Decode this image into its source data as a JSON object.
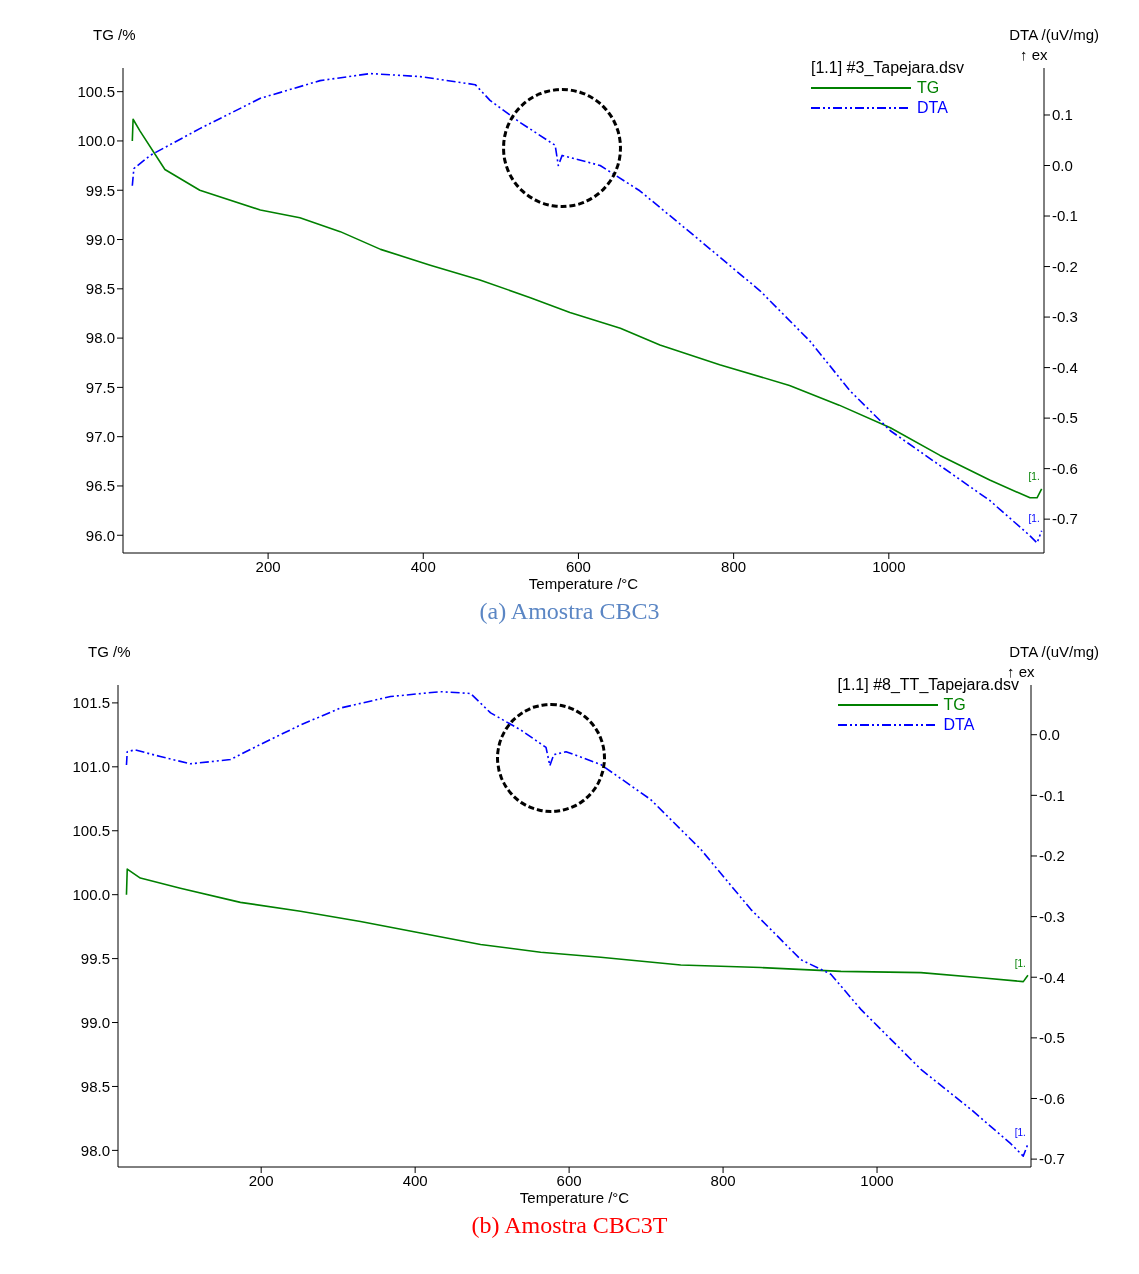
{
  "chart_data": [
    {
      "type": "line",
      "title": "(a) Amostra CBC3",
      "xlabel": "Temperature /°C",
      "ylabel": "TG /%",
      "y2label": "DTA /(uV/mg)",
      "legend_title": "[1.1] #3_Tapejara.dsv",
      "legend": "top right",
      "grid": false,
      "marker": "none",
      "xlim": [
        13,
        1200
      ],
      "xticks": [
        200,
        400,
        600,
        800,
        1000
      ],
      "ylim": [
        95.82,
        100.74
      ],
      "yticks": [
        {
          "value": 96,
          "label": "96.0"
        },
        96.5,
        {
          "value": 97,
          "label": "97.0"
        },
        97.5,
        {
          "value": 98,
          "label": "98.0"
        },
        98.5,
        {
          "value": 99,
          "label": "99.0"
        },
        99.5,
        {
          "value": 100,
          "label": "100.0"
        },
        100.5
      ],
      "y2lim": [
        -0.767,
        0.193
      ],
      "y2ticks": [
        -0.7,
        -0.6,
        -0.5,
        -0.4,
        -0.3,
        -0.2,
        -0.1,
        {
          "value": 0,
          "label": "0.0"
        },
        0.1
      ],
      "annotations": [
        "↑ ex",
        "[1.",
        "[1."
      ],
      "series": [
        {
          "name": "TG",
          "color": "#008000",
          "line_style": "solid",
          "x": [
            25,
            26,
            35,
            67,
            112,
            190,
            241,
            293,
            345,
            409,
            473,
            538,
            589,
            654,
            705,
            782,
            872,
            936,
            1002,
            1066,
            1130,
            1182,
            1191,
            1197
          ],
          "values": [
            100.0,
            100.22,
            100.1,
            99.71,
            99.5,
            99.3,
            99.22,
            99.08,
            98.9,
            98.74,
            98.59,
            98.41,
            98.26,
            98.1,
            97.93,
            97.73,
            97.52,
            97.32,
            97.09,
            96.81,
            96.56,
            96.38,
            96.38,
            96.47
          ]
        },
        {
          "name": "DTA",
          "color": "#0000ff",
          "line_style": "dashed",
          "axis": "y2",
          "x": [
            25,
            27,
            48,
            112,
            190,
            267,
            332,
            396,
            467,
            486,
            525,
            570,
            574,
            579,
            589,
            628,
            679,
            757,
            834,
            898,
            950,
            1002,
            1066,
            1130,
            1182,
            1191,
            1197
          ],
          "values": [
            -0.04,
            -0.006,
            0.02,
            0.073,
            0.133,
            0.168,
            0.182,
            0.176,
            0.16,
            0.129,
            0.085,
            0.04,
            0.0,
            0.02,
            0.016,
            0.0,
            -0.05,
            -0.149,
            -0.248,
            -0.347,
            -0.446,
            -0.525,
            -0.594,
            -0.663,
            -0.733,
            -0.747,
            -0.723
          ]
        }
      ]
    },
    {
      "type": "line",
      "title": "(b) Amostra CBC3T",
      "xlabel": "Temperature /°C",
      "ylabel": "TG /%",
      "y2label": "DTA /(uV/mg)",
      "legend_title": "[1.1] #8_TT_Tapejara.dsv",
      "legend": "top right",
      "grid": false,
      "marker": "none",
      "xlim": [
        14,
        1200
      ],
      "xticks": [
        200,
        400,
        600,
        800,
        1000
      ],
      "ylim": [
        97.87,
        101.64
      ],
      "yticks": [
        {
          "value": 98,
          "label": "98.0"
        },
        98.5,
        {
          "value": 99,
          "label": "99.0"
        },
        99.5,
        {
          "value": 100,
          "label": "100.0"
        },
        100.5,
        {
          "value": 101,
          "label": "101.0"
        },
        101.5
      ],
      "y2lim": [
        -0.713,
        0.082
      ],
      "y2ticks": [
        -0.7,
        -0.6,
        -0.5,
        -0.4,
        -0.3,
        -0.2,
        -0.1,
        {
          "value": 0,
          "label": "0.0"
        }
      ],
      "annotations": [
        "↑ ex",
        "[1.",
        "[1."
      ],
      "series": [
        {
          "name": "TG",
          "color": "#008000",
          "line_style": "solid",
          "x": [
            25,
            26,
            43,
            95,
            173,
            251,
            329,
            407,
            485,
            563,
            641,
            745,
            849,
            953,
            1057,
            1135,
            1190,
            1196
          ],
          "values": [
            100.0,
            100.2,
            100.13,
            100.05,
            99.94,
            99.87,
            99.79,
            99.7,
            99.61,
            99.55,
            99.51,
            99.45,
            99.43,
            99.4,
            99.39,
            99.35,
            99.32,
            99.37
          ]
        },
        {
          "name": "DTA",
          "color": "#0000ff",
          "line_style": "dashed",
          "axis": "y2",
          "x": [
            25,
            26,
            36,
            69,
            108,
            160,
            199,
            251,
            303,
            368,
            433,
            472,
            498,
            537,
            570,
            575,
            580,
            596,
            641,
            706,
            771,
            836,
            901,
            940,
            979,
            1057,
            1122,
            1174,
            1190,
            1196
          ],
          "values": [
            -0.05,
            -0.028,
            -0.025,
            -0.036,
            -0.048,
            -0.041,
            -0.016,
            0.016,
            0.044,
            0.063,
            0.071,
            0.068,
            0.036,
            0.008,
            -0.021,
            -0.051,
            -0.033,
            -0.028,
            -0.049,
            -0.107,
            -0.189,
            -0.288,
            -0.371,
            -0.395,
            -0.453,
            -0.552,
            -0.618,
            -0.675,
            -0.695,
            -0.675
          ]
        }
      ]
    }
  ]
}
